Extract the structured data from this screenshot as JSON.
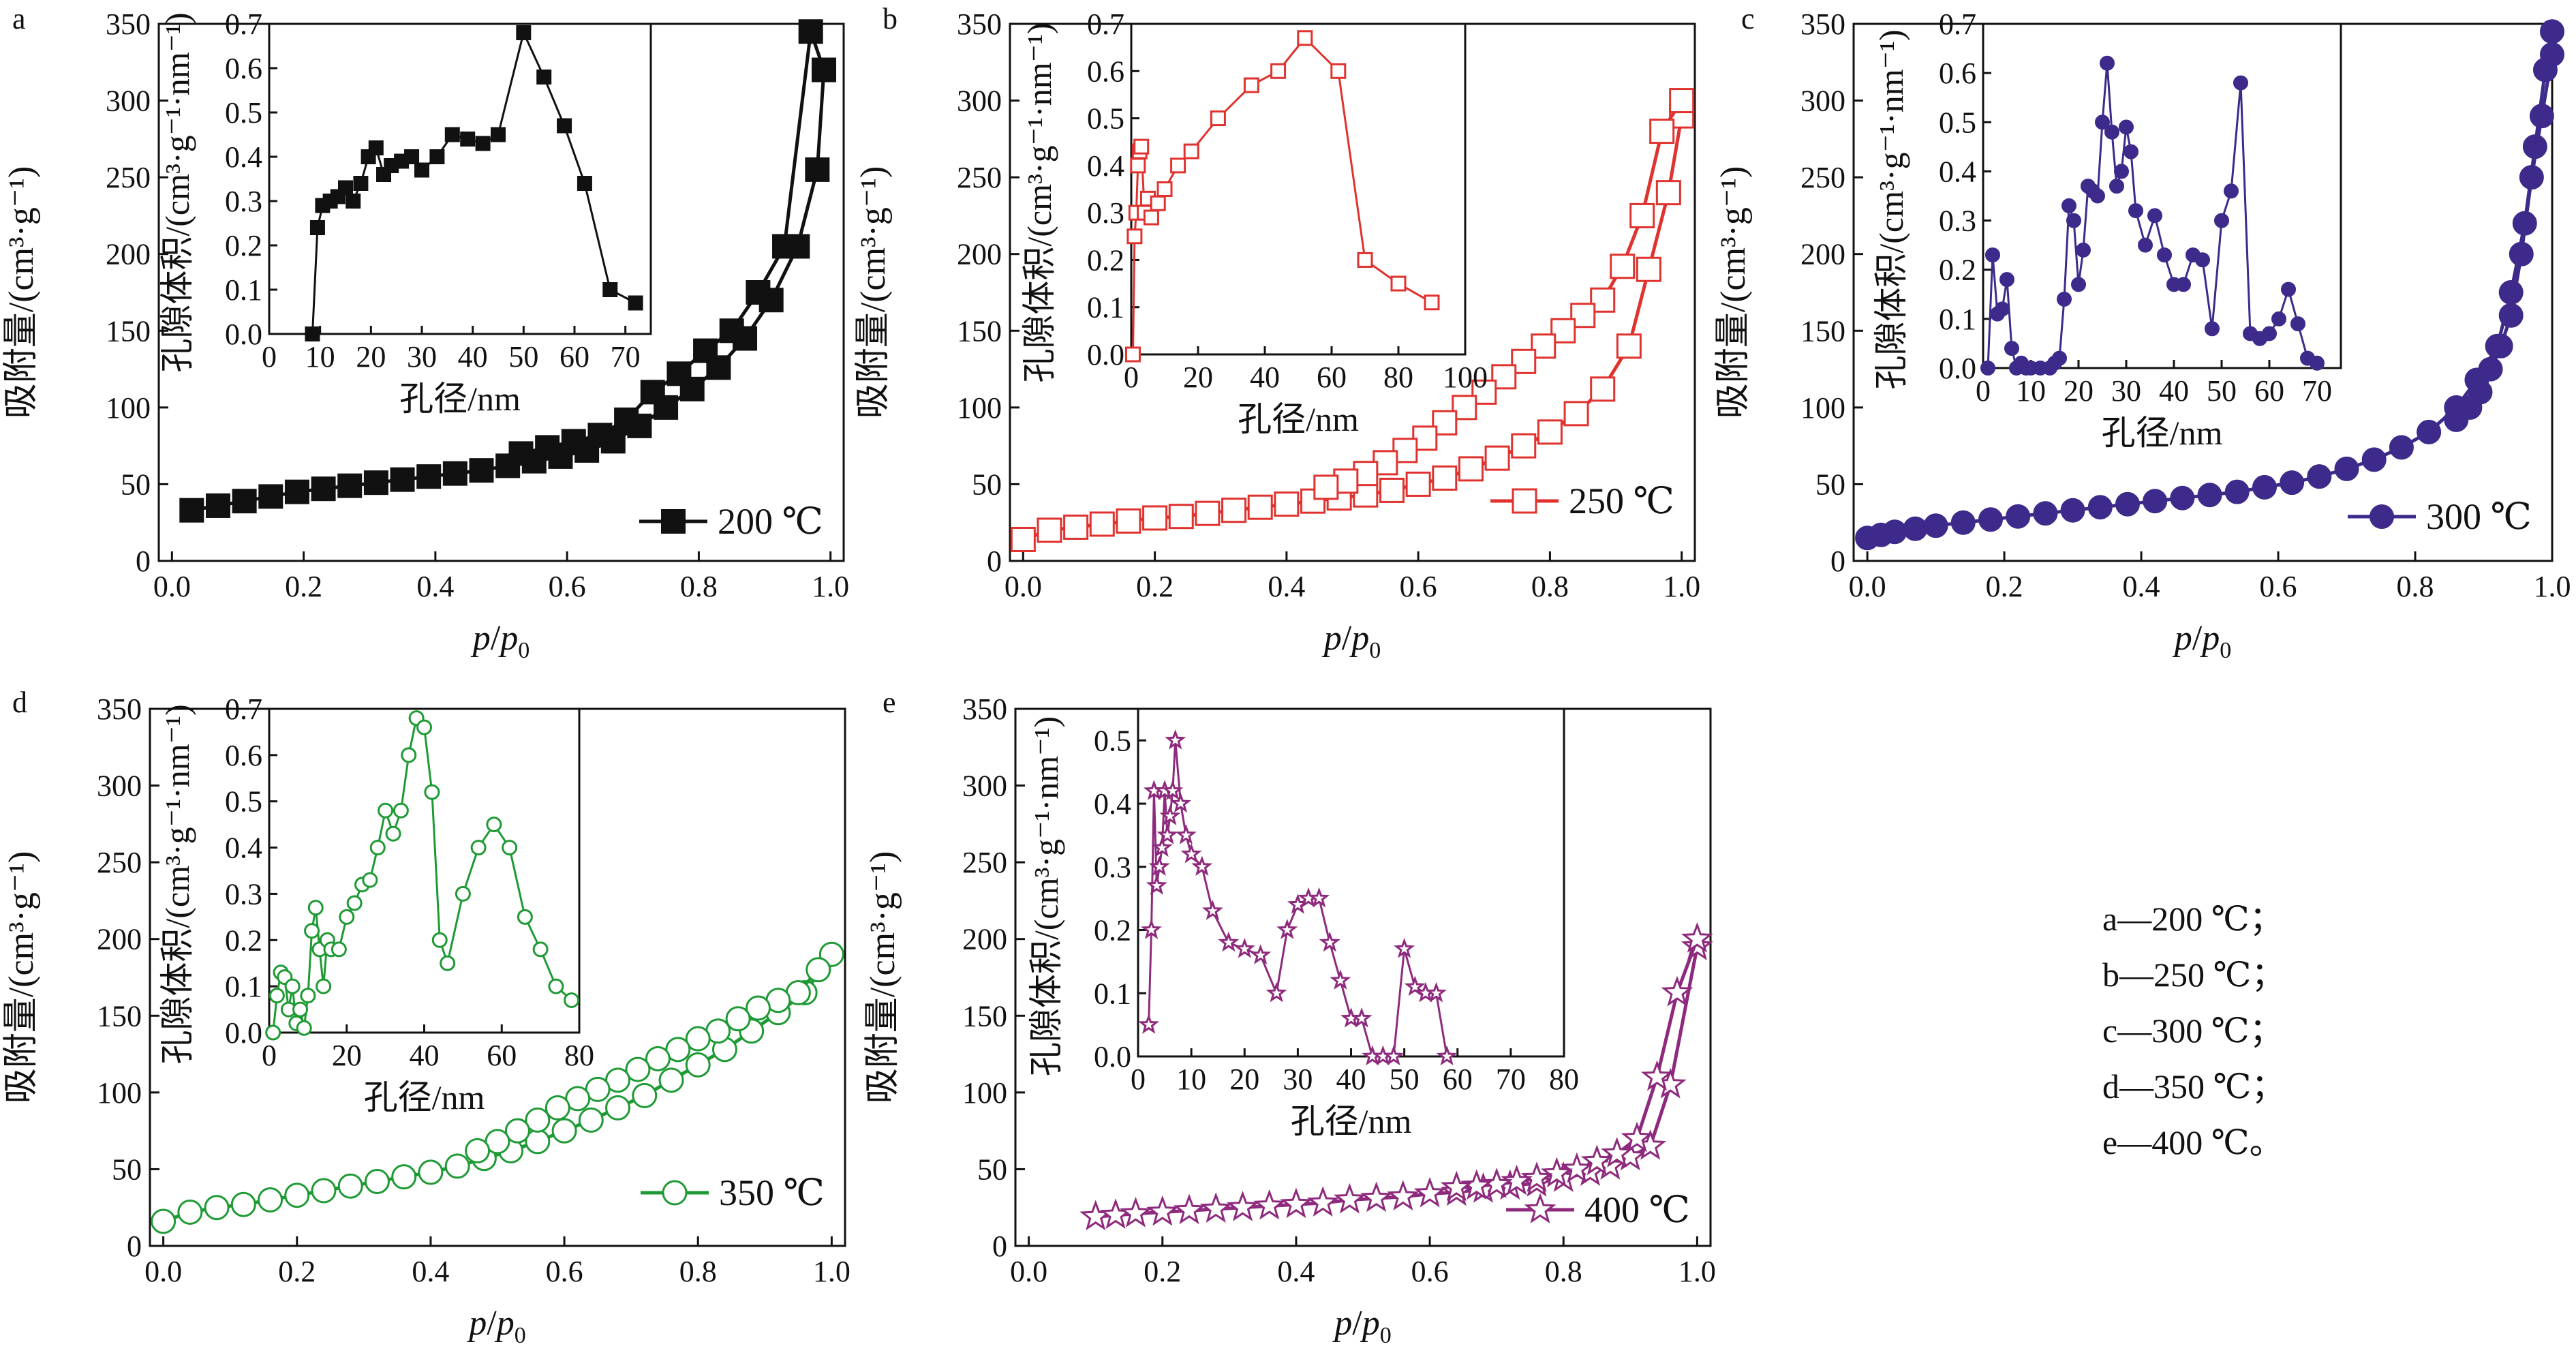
{
  "chart_data": [
    {
      "type": "line",
      "panel_label": "a",
      "color": "#111111",
      "marker": "square-filled",
      "legend": "200 ℃",
      "xlabel_italic": "p",
      "xlabel_sep": "/",
      "xlabel_sub_p": "p",
      "xlabel_sub": "0",
      "ylabel": "吸附量/(cm³·g⁻¹)",
      "xlim": [
        -0.02,
        1.02
      ],
      "ylim": [
        0,
        350
      ],
      "xticks": [
        "0.0",
        "0.2",
        "0.4",
        "0.6",
        "0.8",
        "1.0"
      ],
      "yticks": [
        "0",
        "50",
        "100",
        "150",
        "200",
        "250",
        "300",
        "350"
      ],
      "series": [
        {
          "x": [
            0.03,
            0.07,
            0.11,
            0.15,
            0.19,
            0.23,
            0.27,
            0.31,
            0.35,
            0.39,
            0.43,
            0.47,
            0.51,
            0.55,
            0.59,
            0.63,
            0.67,
            0.71,
            0.75,
            0.79,
            0.83,
            0.87,
            0.91,
            0.95,
            0.98,
            0.99
          ],
          "y": [
            33,
            36,
            39,
            42,
            45,
            47,
            49,
            51,
            53,
            55,
            57,
            59,
            62,
            65,
            68,
            72,
            78,
            88,
            100,
            112,
            126,
            145,
            170,
            205,
            255,
            320
          ]
        },
        {
          "x": [
            0.99,
            0.97,
            0.93,
            0.89,
            0.85,
            0.81,
            0.77,
            0.73,
            0.69,
            0.65,
            0.61,
            0.57,
            0.53
          ],
          "y": [
            320,
            345,
            205,
            175,
            150,
            137,
            122,
            110,
            92,
            82,
            78,
            74,
            70
          ]
        }
      ],
      "inset": {
        "xlabel": "孔径/nm",
        "ylabel": "孔隙体积/(cm³·g⁻¹·nm⁻¹)",
        "xlim": [
          0,
          75
        ],
        "ylim": [
          0,
          0.7
        ],
        "xticks": [
          "0",
          "10",
          "20",
          "30",
          "40",
          "50",
          "60",
          "70"
        ],
        "yticks": [
          "0.0",
          "0.1",
          "0.2",
          "0.3",
          "0.4",
          "0.5",
          "0.6",
          "0.7"
        ],
        "x": [
          8.5,
          9.5,
          10.5,
          12,
          13.5,
          15,
          16.5,
          18,
          19.5,
          21,
          22.5,
          24,
          26,
          28,
          30,
          33,
          36,
          39,
          42,
          45,
          50,
          54,
          58,
          62,
          67,
          72
        ],
        "y": [
          0.0,
          0.24,
          0.29,
          0.3,
          0.31,
          0.33,
          0.3,
          0.34,
          0.4,
          0.42,
          0.36,
          0.38,
          0.39,
          0.4,
          0.37,
          0.4,
          0.45,
          0.44,
          0.43,
          0.45,
          0.68,
          0.58,
          0.47,
          0.34,
          0.1,
          0.07
        ]
      }
    },
    {
      "type": "line",
      "panel_label": "b",
      "color": "#e0322e",
      "marker": "square-open",
      "legend": "250 ℃",
      "xlabel_italic": "p",
      "xlabel_sep": "/",
      "xlabel_sub_p": "p",
      "xlabel_sub": "0",
      "ylabel": "吸附量/(cm³·g⁻¹)",
      "xlim": [
        -0.02,
        1.02
      ],
      "ylim": [
        0,
        350
      ],
      "xticks": [
        "0.0",
        "0.2",
        "0.4",
        "0.6",
        "0.8",
        "1.0"
      ],
      "yticks": [
        "0",
        "50",
        "100",
        "150",
        "200",
        "250",
        "300",
        "350"
      ],
      "series": [
        {
          "x": [
            0.0,
            0.04,
            0.08,
            0.12,
            0.16,
            0.2,
            0.24,
            0.28,
            0.32,
            0.36,
            0.4,
            0.44,
            0.48,
            0.52,
            0.56,
            0.6,
            0.64,
            0.68,
            0.72,
            0.76,
            0.8,
            0.84,
            0.88,
            0.92,
            0.95,
            0.98,
            1.0
          ],
          "y": [
            14,
            20,
            22,
            24,
            26,
            28,
            29,
            31,
            33,
            35,
            37,
            39,
            41,
            43,
            46,
            50,
            54,
            60,
            67,
            75,
            84,
            96,
            112,
            140,
            190,
            240,
            290
          ]
        },
        {
          "x": [
            1.0,
            0.97,
            0.94,
            0.91,
            0.88,
            0.85,
            0.82,
            0.79,
            0.76,
            0.73,
            0.7,
            0.67,
            0.64,
            0.61,
            0.58,
            0.55,
            0.52,
            0.49,
            0.46
          ],
          "y": [
            300,
            280,
            225,
            192,
            170,
            160,
            150,
            140,
            130,
            120,
            110,
            100,
            90,
            80,
            72,
            64,
            57,
            52,
            48
          ]
        }
      ],
      "inset": {
        "xlabel": "孔径/nm",
        "ylabel": "孔隙体积/(cm³·g⁻¹·nm⁻¹)",
        "xlim": [
          0,
          100
        ],
        "ylim": [
          0,
          0.7
        ],
        "xticks": [
          "0",
          "20",
          "40",
          "60",
          "80",
          "100"
        ],
        "yticks": [
          "0.0",
          "0.1",
          "0.2",
          "0.3",
          "0.4",
          "0.5",
          "0.6",
          "0.7"
        ],
        "x": [
          0.5,
          1,
          1.5,
          2,
          2.5,
          3,
          4,
          5,
          6,
          8,
          10,
          14,
          18,
          26,
          36,
          44,
          52,
          62,
          70,
          80,
          90
        ],
        "y": [
          0.0,
          0.25,
          0.3,
          0.4,
          0.43,
          0.44,
          0.3,
          0.33,
          0.29,
          0.32,
          0.35,
          0.4,
          0.43,
          0.5,
          0.57,
          0.6,
          0.67,
          0.6,
          0.2,
          0.15,
          0.11
        ]
      }
    },
    {
      "type": "line",
      "panel_label": "c",
      "color": "#3d2a8a",
      "marker": "circle-filled",
      "legend": "300 ℃",
      "xlabel_italic": "p",
      "xlabel_sep": "/",
      "xlabel_sub_p": "p",
      "xlabel_sub": "0",
      "ylabel": "吸附量/(cm³·g⁻¹)",
      "xlim": [
        -0.02,
        1.0
      ],
      "ylim": [
        0,
        350
      ],
      "xticks": [
        "0.0",
        "0.2",
        "0.4",
        "0.6",
        "0.8",
        "1.0"
      ],
      "yticks": [
        "0",
        "50",
        "100",
        "150",
        "200",
        "250",
        "300",
        "350"
      ],
      "series": [
        {
          "x": [
            0.0,
            0.02,
            0.04,
            0.07,
            0.1,
            0.14,
            0.18,
            0.22,
            0.26,
            0.3,
            0.34,
            0.38,
            0.42,
            0.46,
            0.5,
            0.54,
            0.58,
            0.62,
            0.66,
            0.7,
            0.74,
            0.78,
            0.82,
            0.86,
            0.89,
            0.92,
            0.94,
            0.96,
            0.975,
            0.99,
            1.0
          ],
          "y": [
            15,
            17,
            19,
            21,
            23,
            25,
            27,
            29,
            31,
            33,
            35,
            37,
            39,
            41,
            43,
            45,
            48,
            51,
            55,
            60,
            66,
            74,
            84,
            100,
            118,
            140,
            175,
            220,
            270,
            320,
            345
          ]
        },
        {
          "x": [
            1.0,
            0.985,
            0.97,
            0.955,
            0.94,
            0.925,
            0.91,
            0.895,
            0.88,
            0.86
          ],
          "y": [
            330,
            290,
            250,
            200,
            160,
            140,
            125,
            110,
            100,
            92
          ]
        }
      ],
      "inset": {
        "xlabel": "孔径/nm",
        "ylabel": "孔隙体积/(cm³·g⁻¹·nm⁻¹)",
        "xlim": [
          0,
          75
        ],
        "ylim": [
          0,
          0.7
        ],
        "xticks": [
          "0",
          "10",
          "20",
          "30",
          "40",
          "50",
          "60",
          "70"
        ],
        "yticks": [
          "0.0",
          "0.1",
          "0.2",
          "0.3",
          "0.4",
          "0.5",
          "0.6",
          "0.7"
        ],
        "x": [
          1,
          2,
          3,
          4,
          5,
          6,
          7,
          8,
          9,
          10,
          12,
          14,
          15,
          16,
          17,
          18,
          19,
          20,
          21,
          22,
          23,
          24,
          25,
          26,
          27,
          28,
          29,
          30,
          31,
          32,
          34,
          36,
          38,
          40,
          42,
          44,
          46,
          48,
          50,
          52,
          54,
          56,
          58,
          60,
          62,
          64,
          66,
          68,
          70
        ],
        "y": [
          0.0,
          0.23,
          0.11,
          0.12,
          0.18,
          0.04,
          0.0,
          0.01,
          0.0,
          0.0,
          0.0,
          0.0,
          0.01,
          0.02,
          0.14,
          0.33,
          0.3,
          0.17,
          0.24,
          0.37,
          0.36,
          0.35,
          0.5,
          0.62,
          0.48,
          0.37,
          0.4,
          0.49,
          0.44,
          0.32,
          0.25,
          0.31,
          0.23,
          0.17,
          0.17,
          0.23,
          0.22,
          0.08,
          0.3,
          0.36,
          0.58,
          0.07,
          0.06,
          0.07,
          0.1,
          0.16,
          0.09,
          0.02,
          0.01
        ]
      }
    },
    {
      "type": "line",
      "panel_label": "d",
      "color": "#1e9a34",
      "marker": "circle-open",
      "legend": "350 ℃",
      "xlabel_italic": "p",
      "xlabel_sep": "/",
      "xlabel_sub_p": "p",
      "xlabel_sub": "0",
      "ylabel": "吸附量/(cm³·g⁻¹)",
      "xlim": [
        -0.02,
        1.02
      ],
      "ylim": [
        0,
        350
      ],
      "xticks": [
        "0.0",
        "0.2",
        "0.4",
        "0.6",
        "0.8",
        "1.0"
      ],
      "yticks": [
        "0",
        "50",
        "100",
        "150",
        "200",
        "250",
        "300",
        "350"
      ],
      "series": [
        {
          "x": [
            0.0,
            0.04,
            0.08,
            0.12,
            0.16,
            0.2,
            0.24,
            0.28,
            0.32,
            0.36,
            0.4,
            0.44,
            0.48,
            0.52,
            0.56,
            0.6,
            0.64,
            0.68,
            0.72,
            0.76,
            0.8,
            0.84,
            0.88,
            0.92,
            0.96,
            1.0
          ],
          "y": [
            16,
            22,
            25,
            27,
            30,
            33,
            36,
            39,
            42,
            45,
            48,
            52,
            57,
            62,
            68,
            75,
            82,
            90,
            98,
            108,
            118,
            128,
            140,
            152,
            165,
            190
          ]
        },
        {
          "x": [
            0.98,
            0.95,
            0.92,
            0.89,
            0.86,
            0.83,
            0.8,
            0.77,
            0.74,
            0.71,
            0.68,
            0.65,
            0.62,
            0.59,
            0.56,
            0.53,
            0.5,
            0.47
          ],
          "y": [
            180,
            165,
            160,
            155,
            148,
            140,
            135,
            128,
            122,
            115,
            108,
            102,
            96,
            90,
            82,
            75,
            68,
            62
          ]
        }
      ],
      "inset": {
        "xlabel": "孔径/nm",
        "ylabel": "孔隙体积/(cm³·g⁻¹·nm⁻¹)",
        "xlim": [
          0,
          80
        ],
        "ylim": [
          0,
          0.7
        ],
        "xticks": [
          "0",
          "20",
          "40",
          "60",
          "80"
        ],
        "yticks": [
          "0.0",
          "0.1",
          "0.2",
          "0.3",
          "0.4",
          "0.5",
          "0.6",
          "0.7"
        ],
        "x": [
          1,
          2,
          3,
          4,
          5,
          6,
          7,
          8,
          9,
          10,
          11,
          12,
          13,
          14,
          15,
          16,
          18,
          20,
          22,
          24,
          26,
          28,
          30,
          32,
          34,
          36,
          38,
          40,
          42,
          44,
          46,
          50,
          54,
          58,
          62,
          66,
          70,
          74,
          78
        ],
        "y": [
          0.0,
          0.08,
          0.13,
          0.12,
          0.05,
          0.1,
          0.02,
          0.05,
          0.01,
          0.08,
          0.22,
          0.27,
          0.18,
          0.1,
          0.2,
          0.18,
          0.18,
          0.25,
          0.28,
          0.32,
          0.33,
          0.4,
          0.48,
          0.43,
          0.48,
          0.6,
          0.68,
          0.66,
          0.52,
          0.2,
          0.15,
          0.3,
          0.4,
          0.45,
          0.4,
          0.25,
          0.18,
          0.1,
          0.07
        ]
      }
    },
    {
      "type": "line",
      "panel_label": "e",
      "color": "#8e2a7d",
      "marker": "star-open",
      "legend": "400 ℃",
      "xlabel_italic": "p",
      "xlabel_sep": "/",
      "xlabel_sub_p": "p",
      "xlabel_sub": "0",
      "ylabel": "吸附量/(cm³·g⁻¹)",
      "xlim": [
        -0.02,
        1.02
      ],
      "ylim": [
        0,
        350
      ],
      "xticks": [
        "0.0",
        "0.2",
        "0.4",
        "0.6",
        "0.8",
        "1.0"
      ],
      "yticks": [
        "0",
        "50",
        "100",
        "150",
        "200",
        "250",
        "300",
        "350"
      ],
      "series": [
        {
          "x": [
            0.1,
            0.13,
            0.16,
            0.2,
            0.24,
            0.28,
            0.32,
            0.36,
            0.4,
            0.44,
            0.48,
            0.52,
            0.56,
            0.6,
            0.64,
            0.68,
            0.72,
            0.76,
            0.8,
            0.84,
            0.87,
            0.9,
            0.93,
            0.96,
            1.0
          ],
          "y": [
            19,
            20,
            21,
            22,
            23,
            24,
            25,
            26,
            27,
            28,
            30,
            31,
            32,
            34,
            35,
            37,
            39,
            41,
            44,
            48,
            52,
            58,
            65,
            105,
            195
          ]
        },
        {
          "x": [
            1.0,
            0.97,
            0.94,
            0.91,
            0.88,
            0.85,
            0.82,
            0.79,
            0.76,
            0.73,
            0.7,
            0.67,
            0.64
          ],
          "y": [
            200,
            165,
            110,
            70,
            60,
            55,
            50,
            47,
            44,
            42,
            40,
            39,
            38
          ]
        }
      ],
      "inset": {
        "xlabel": "孔径/nm",
        "ylabel": "孔隙体积/(cm³·g⁻¹·nm⁻¹)",
        "xlim": [
          0,
          80
        ],
        "ylim": [
          0,
          0.55
        ],
        "xticks": [
          "0",
          "10",
          "20",
          "30",
          "40",
          "50",
          "60",
          "70",
          "80"
        ],
        "yticks": [
          "0.0",
          "0.1",
          "0.2",
          "0.3",
          "0.4",
          "0.5"
        ],
        "x": [
          2,
          2.5,
          3,
          3.5,
          4,
          4.5,
          5,
          5.5,
          6,
          6.5,
          7,
          8,
          9,
          10,
          12,
          14,
          17,
          20,
          23,
          26,
          28,
          30,
          32,
          34,
          36,
          38,
          40,
          42,
          44,
          46,
          48,
          50,
          52,
          54,
          56,
          58
        ],
        "y": [
          0.05,
          0.2,
          0.42,
          0.27,
          0.3,
          0.33,
          0.42,
          0.35,
          0.38,
          0.42,
          0.5,
          0.4,
          0.35,
          0.32,
          0.3,
          0.23,
          0.18,
          0.17,
          0.16,
          0.1,
          0.2,
          0.24,
          0.25,
          0.25,
          0.18,
          0.12,
          0.06,
          0.06,
          0.0,
          0.0,
          0.0,
          0.17,
          0.11,
          0.1,
          0.1,
          0.0
        ]
      }
    }
  ],
  "notes": [
    "a—200 ℃；",
    "b—250 ℃；",
    "c—300 ℃；",
    "d—350 ℃；",
    "e—400 ℃。"
  ]
}
